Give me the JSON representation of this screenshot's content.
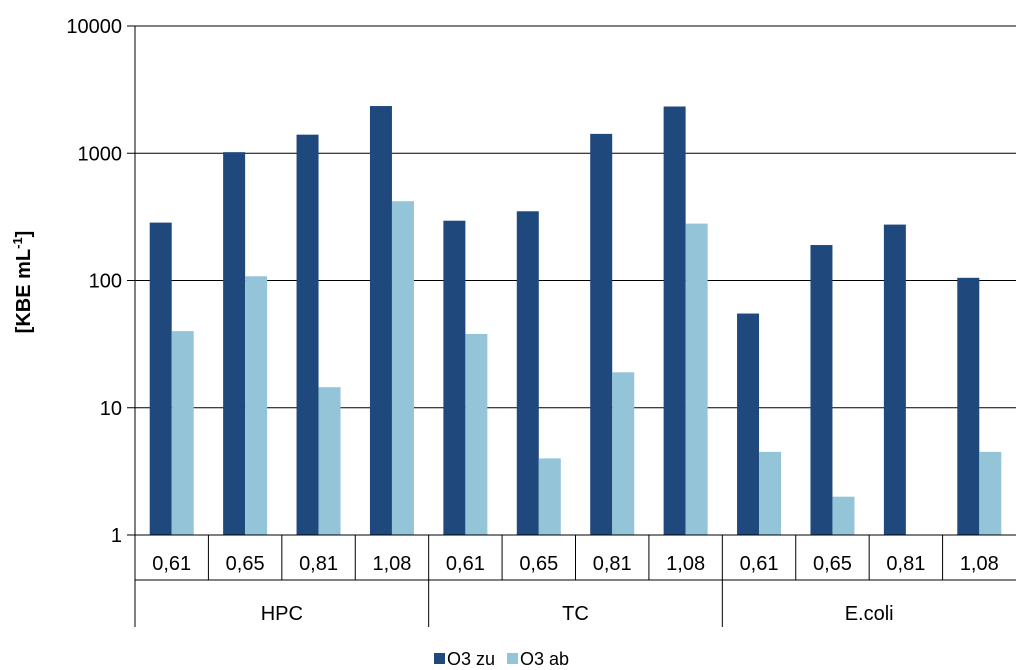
{
  "chart_data": {
    "type": "bar",
    "y_scale": "log",
    "ylim": [
      1,
      10000
    ],
    "ylabel_main": "[KBE mL",
    "ylabel_sup": "-1",
    "ylabel_end": "]",
    "y_ticks": [
      "1",
      "10",
      "100",
      "1000",
      "10000"
    ],
    "y_tick_values": [
      1,
      10,
      100,
      1000,
      10000
    ],
    "grid": true,
    "legend_position": "bottom",
    "groups": [
      {
        "label": "HPC",
        "categories": [
          "0,61",
          "0,65",
          "0,81",
          "1,08"
        ]
      },
      {
        "label": "TC",
        "categories": [
          "0,61",
          "0,65",
          "0,81",
          "1,08"
        ]
      },
      {
        "label": "E.coli",
        "categories": [
          "0,61",
          "0,65",
          "0,81",
          "1,08"
        ]
      }
    ],
    "series": [
      {
        "name": "O3 zu",
        "color": "#1f497d",
        "values": [
          285,
          1020,
          1400,
          2350,
          295,
          350,
          1420,
          2330,
          55,
          190,
          275,
          105
        ]
      },
      {
        "name": "O3 ab",
        "color": "#93c4d7",
        "values": [
          40,
          108,
          14.5,
          420,
          38,
          4,
          19,
          280,
          4.5,
          2,
          null,
          4.5
        ]
      }
    ]
  }
}
